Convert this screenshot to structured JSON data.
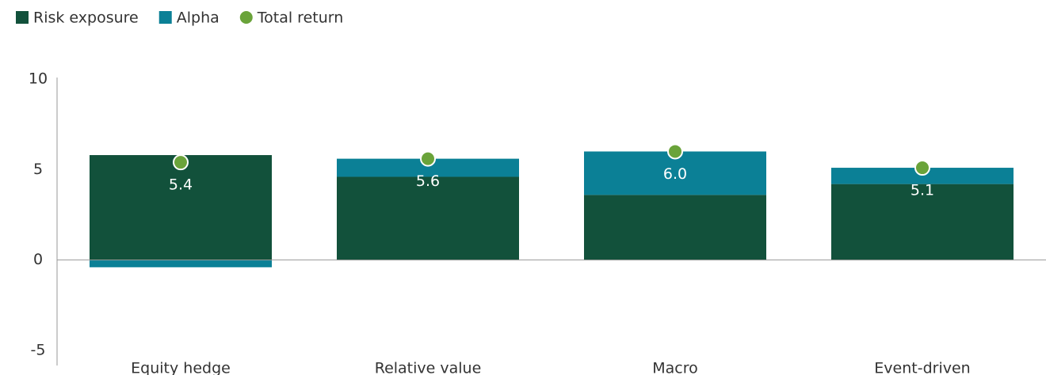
{
  "chart_data": {
    "type": "bar",
    "stacked": true,
    "categories": [
      "Equity hedge",
      "Relative value",
      "Macro",
      "Event-driven"
    ],
    "series": [
      {
        "name": "Risk exposure",
        "color": "#12513b",
        "values": [
          5.8,
          4.6,
          3.6,
          4.2
        ]
      },
      {
        "name": "Alpha",
        "color": "#0b8096",
        "values": [
          -0.4,
          1.0,
          2.4,
          0.9
        ]
      },
      {
        "name": "Total return",
        "type": "scatter",
        "color": "#6aa33a",
        "values": [
          5.4,
          5.6,
          6.0,
          5.1
        ],
        "value_labels": [
          "5.4",
          "5.6",
          "6.0",
          "5.1"
        ]
      }
    ],
    "ylim": [
      -5,
      10
    ],
    "yticks": [
      10,
      5,
      0,
      -5
    ],
    "grid": false,
    "legend": "top-left"
  }
}
